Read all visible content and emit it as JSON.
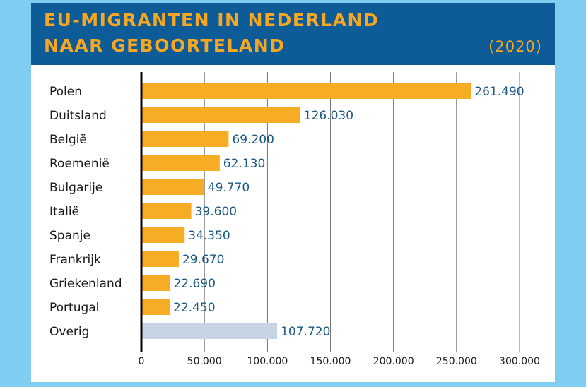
{
  "header": {
    "title_line1": "EU-MIGRANTEN IN NEDERLAND",
    "title_line2": "NAAR GEBOORTELAND",
    "year": "(2020)"
  },
  "colors": {
    "background": "#7fcdf0",
    "header_bg": "#0d5b97",
    "title": "#f5a623",
    "bar": "#f7ac25",
    "bar_other": "#c6d4e4",
    "value_label": "#1b5a86",
    "category_label": "#1a1a1a"
  },
  "chart_data": {
    "type": "bar",
    "orientation": "horizontal",
    "title": "EU-MIGRANTEN IN NEDERLAND NAAR GEBOORTELAND",
    "subtitle": "(2020)",
    "categories": [
      "Polen",
      "Duitsland",
      "België",
      "Roemenië",
      "Bulgarije",
      "Italië",
      "Spanje",
      "Frankrijk",
      "Griekenland",
      "Portugal",
      "Overig"
    ],
    "values": [
      261490,
      126030,
      69200,
      62130,
      49770,
      39600,
      34350,
      29670,
      22690,
      22450,
      107720
    ],
    "value_labels": [
      "261.490",
      "126.030",
      "69.200",
      "62.130",
      "49.770",
      "39.600",
      "34.350",
      "29.670",
      "22.690",
      "22.450",
      "107.720"
    ],
    "highlight_categories": [
      "Overig"
    ],
    "xlim": [
      0,
      300000
    ],
    "x_ticks": [
      0,
      50000,
      100000,
      150000,
      200000,
      250000,
      300000
    ],
    "x_tick_labels": [
      "0",
      "50.000",
      "100.000",
      "150.000",
      "200.000",
      "250.000",
      "300.000"
    ],
    "xlabel": "",
    "ylabel": "",
    "grid": "vertical",
    "legend": "none"
  }
}
